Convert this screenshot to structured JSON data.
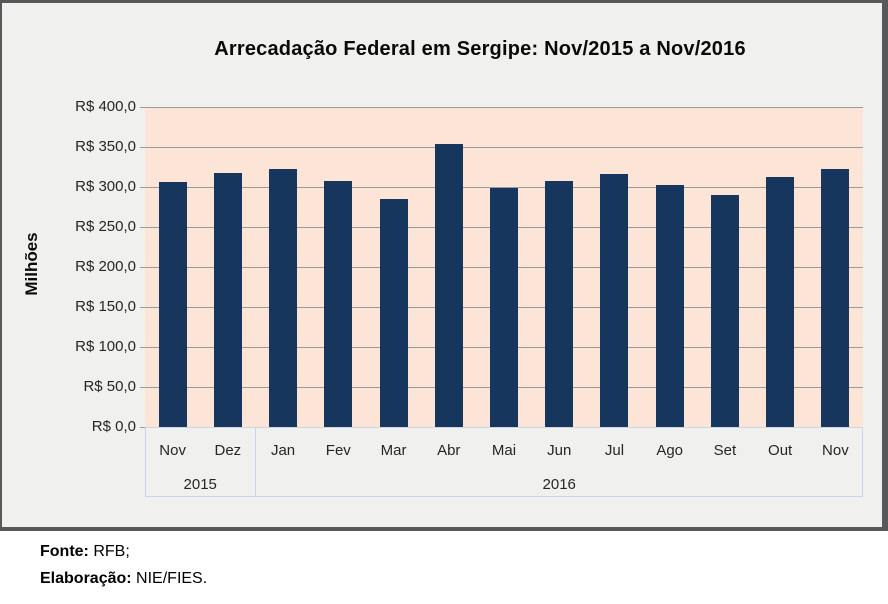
{
  "chart_data": {
    "type": "bar",
    "title": "Arrecadação Federal em Sergipe: Nov/2015 a Nov/2016",
    "ylabel": "Milhões",
    "xlabel": "",
    "ylim": [
      0,
      400
    ],
    "ytick_step": 50,
    "ytick_values": [
      400,
      350,
      300,
      250,
      200,
      150,
      100,
      50,
      0
    ],
    "ytick_labels": [
      "R$ 400,0",
      "R$ 350,0",
      "R$ 300,0",
      "R$ 250,0",
      "R$ 200,0",
      "R$ 150,0",
      "R$ 100,0",
      "R$ 50,0",
      "R$ 0,0"
    ],
    "categories": [
      "Nov",
      "Dez",
      "Jan",
      "Fev",
      "Mar",
      "Abr",
      "Mai",
      "Jun",
      "Jul",
      "Ago",
      "Set",
      "Out",
      "Nov"
    ],
    "category_groups": [
      {
        "label": "2015",
        "count": 2
      },
      {
        "label": "2016",
        "count": 11
      }
    ],
    "values": [
      306,
      317,
      323,
      308,
      285,
      354,
      299,
      307,
      316,
      303,
      290,
      313,
      323
    ],
    "grid": true,
    "legend": "none",
    "colors": {
      "bar": "#17365D",
      "plot_bg": "#FCE4D6",
      "frame_bg": "#F0F0EF",
      "frame_border": "#58585A",
      "gridline": "#9A9A98",
      "axis_line": "#C9D6E6",
      "text": "#262626"
    }
  },
  "footer": {
    "source_label": "Fonte:",
    "source_value": "RFB;",
    "elaboration_label": "Elaboração:",
    "elaboration_value": "NIE/FIES."
  }
}
